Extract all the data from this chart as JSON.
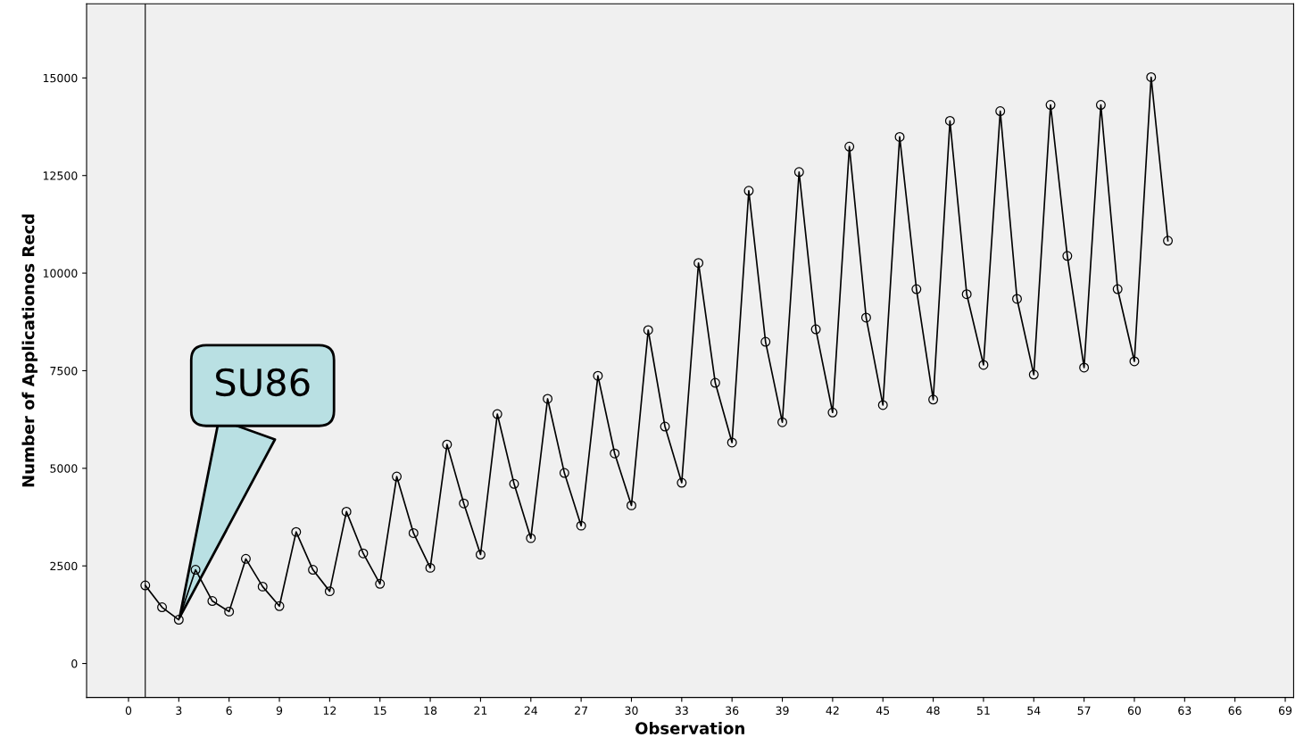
{
  "chart_data": {
    "type": "line",
    "xlabel": "Observation",
    "ylabel": "Number of Applicationos Recd",
    "x": [
      1,
      2,
      3,
      4,
      5,
      6,
      7,
      8,
      9,
      10,
      11,
      12,
      13,
      14,
      15,
      16,
      17,
      18,
      19,
      20,
      21,
      22,
      23,
      24,
      25,
      26,
      27,
      28,
      29,
      30,
      31,
      32,
      33,
      34,
      35,
      36,
      37,
      38,
      39,
      40,
      41,
      42,
      43,
      44,
      45,
      46,
      47,
      48,
      49,
      50,
      51,
      52,
      53,
      54,
      55,
      56,
      57,
      58,
      59,
      60,
      61,
      62
    ],
    "series": [
      {
        "color": "#000000",
        "values": [
          2000,
          1440,
          1120,
          2400,
          1600,
          1330,
          2680,
          1970,
          1470,
          3370,
          2400,
          1850,
          3890,
          2820,
          2040,
          4790,
          3340,
          2450,
          5610,
          4100,
          2790,
          6390,
          4600,
          3210,
          6780,
          4880,
          3530,
          7370,
          5380,
          4050,
          8540,
          6070,
          4630,
          10260,
          7190,
          5660,
          12110,
          8240,
          6180,
          12590,
          8560,
          6430,
          13240,
          8860,
          6620,
          13490,
          9590,
          6760,
          13900,
          9460,
          7650,
          14150,
          9340,
          7400,
          14310,
          10440,
          7580,
          14310,
          9590,
          7740,
          15020,
          10830
        ]
      }
    ],
    "xlim": [
      -2.5,
      69.5
    ],
    "xticks": [
      0,
      3,
      6,
      9,
      12,
      15,
      18,
      21,
      24,
      27,
      30,
      33,
      36,
      39,
      42,
      45,
      48,
      51,
      54,
      57,
      60,
      63,
      66,
      69
    ],
    "ylim": [
      -870,
      16900
    ],
    "yticks": [
      0,
      2500,
      5000,
      7500,
      10000,
      12500,
      15000
    ],
    "ref_lines": [
      {
        "axis": "x",
        "value": 1,
        "color": "#000000"
      }
    ],
    "annotations": [
      {
        "text": "SU86",
        "x": 3,
        "y": 1120
      }
    ],
    "marker": "circle",
    "line_style": "solid",
    "grid": false,
    "legend": false
  }
}
